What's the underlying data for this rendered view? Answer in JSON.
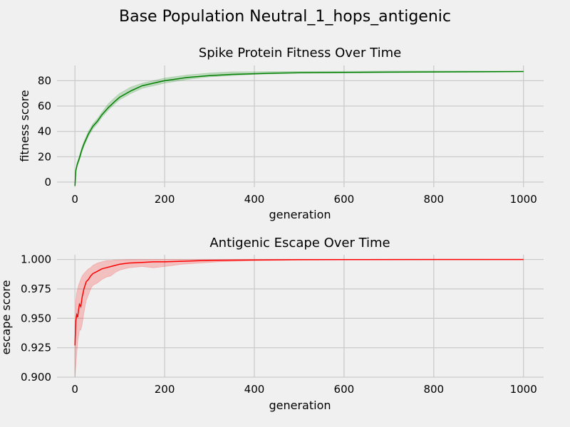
{
  "figure_title": "Base Population Neutral_1_hops_antigenic",
  "chart_data": [
    {
      "type": "line",
      "title": "Spike Protein Fitness Over Time",
      "xlabel": "generation",
      "ylabel": "fitness score",
      "xlim": [
        -40,
        1045
      ],
      "ylim": [
        -4,
        92
      ],
      "xticks": [
        0,
        200,
        400,
        600,
        800,
        1000
      ],
      "yticks": [
        0,
        20,
        40,
        60,
        80
      ],
      "xtick_labels": [
        "0",
        "200",
        "400",
        "600",
        "800",
        "1000"
      ],
      "ytick_labels": [
        "0",
        "20",
        "40",
        "60",
        "80"
      ],
      "grid": true,
      "line_color": "#008000",
      "band_color": "#008000",
      "series": [
        {
          "x": [
            0,
            2,
            5,
            10,
            15,
            20,
            30,
            40,
            50,
            60,
            75,
            90,
            100,
            125,
            150,
            175,
            200,
            250,
            300,
            350,
            400,
            450,
            500,
            600,
            700,
            800,
            900,
            1000
          ],
          "mean": [
            -3,
            9,
            14,
            19,
            25,
            30,
            38,
            44,
            48,
            53,
            59,
            64,
            67,
            72,
            76,
            78,
            80,
            82.5,
            84,
            85,
            85.5,
            86,
            86.3,
            86.5,
            86.7,
            86.9,
            87,
            87.2
          ],
          "lower": [
            -3,
            8,
            12,
            17,
            23,
            28,
            36,
            42,
            46,
            51,
            57,
            62,
            65,
            70,
            74,
            76,
            78,
            81,
            83,
            84,
            85,
            85.5,
            86,
            86.2,
            86.4,
            86.6,
            86.9,
            87.1
          ],
          "upper": [
            -3,
            10,
            15,
            21,
            27,
            32,
            40,
            46,
            50,
            55,
            62,
            67,
            70,
            75,
            78,
            80,
            82,
            84.5,
            86,
            87,
            87,
            87.2,
            87.3,
            87.4,
            87.6,
            87.7,
            87.7,
            87.5
          ]
        }
      ]
    },
    {
      "type": "line",
      "title": "Antigenic Escape Over Time",
      "xlabel": "generation",
      "ylabel": "escape score",
      "xlim": [
        -40,
        1045
      ],
      "ylim": [
        0.9,
        1.004
      ],
      "xticks": [
        0,
        200,
        400,
        600,
        800,
        1000
      ],
      "yticks": [
        0.9,
        0.925,
        0.95,
        0.975,
        1.0
      ],
      "xtick_labels": [
        "0",
        "200",
        "400",
        "600",
        "800",
        "1000"
      ],
      "ytick_labels": [
        "0.900",
        "0.925",
        "0.950",
        "0.975",
        "1.000"
      ],
      "grid": true,
      "line_color": "#ff0000",
      "band_color": "#ff0000",
      "series": [
        {
          "x": [
            0,
            2,
            4,
            6,
            8,
            10,
            13,
            16,
            20,
            25,
            30,
            35,
            40,
            50,
            60,
            70,
            80,
            90,
            100,
            120,
            150,
            175,
            200,
            240,
            280,
            320,
            400,
            500,
            600,
            800,
            1000
          ],
          "mean": [
            0.927,
            0.948,
            0.953,
            0.951,
            0.957,
            0.962,
            0.96,
            0.968,
            0.975,
            0.981,
            0.983,
            0.986,
            0.988,
            0.99,
            0.992,
            0.993,
            0.994,
            0.995,
            0.996,
            0.997,
            0.9975,
            0.998,
            0.998,
            0.9985,
            0.999,
            0.9993,
            0.9996,
            0.9998,
            0.9999,
            1.0,
            1.0
          ],
          "lower": [
            0.9,
            0.91,
            0.92,
            0.93,
            0.935,
            0.94,
            0.94,
            0.945,
            0.955,
            0.965,
            0.97,
            0.975,
            0.978,
            0.98,
            0.983,
            0.985,
            0.986,
            0.989,
            0.991,
            0.993,
            0.994,
            0.993,
            0.994,
            0.996,
            0.997,
            0.998,
            0.999,
            0.9995,
            0.9997,
            0.9999,
            1.0
          ],
          "upper": [
            0.927,
            0.965,
            0.972,
            0.975,
            0.978,
            0.98,
            0.983,
            0.986,
            0.988,
            0.99,
            0.992,
            0.993,
            0.995,
            0.997,
            0.998,
            0.999,
            0.999,
            0.9995,
            0.9997,
            0.9999,
            1.0,
            1.0,
            1.0,
            1.0,
            1.0,
            1.0,
            1.0,
            1.0,
            1.0,
            1.0,
            1.0
          ]
        }
      ]
    }
  ]
}
